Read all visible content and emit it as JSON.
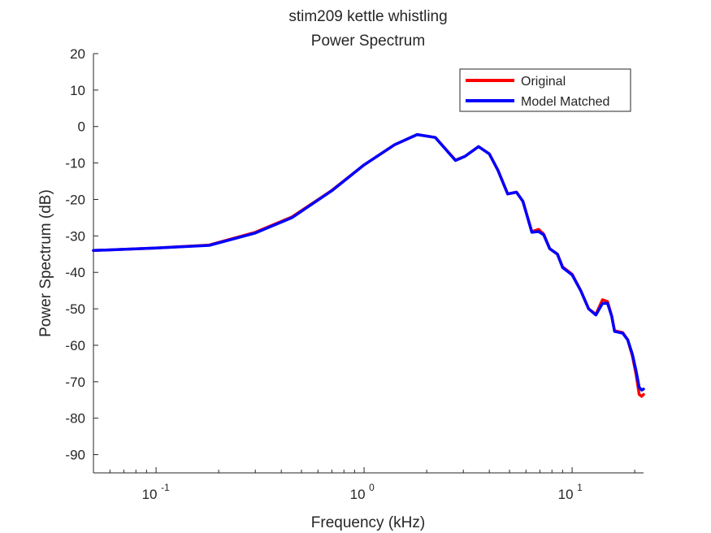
{
  "chart_data": {
    "type": "line",
    "title": "stim209 kettle whistling",
    "subtitle": "Power Spectrum",
    "xlabel": "Frequency (kHz)",
    "ylabel": "Power Spectrum (dB)",
    "x_scale": "log",
    "xlim": [
      0.05,
      22.05
    ],
    "ylim": [
      -95,
      20
    ],
    "x_ticks": [
      {
        "value": 0.1,
        "base": "10",
        "exp": "-1"
      },
      {
        "value": 1,
        "base": "10",
        "exp": "0"
      },
      {
        "value": 10,
        "base": "10",
        "exp": "1"
      }
    ],
    "y_ticks": [
      20,
      10,
      0,
      -10,
      -20,
      -30,
      -40,
      -50,
      -60,
      -70,
      -80,
      -90
    ],
    "grid": false,
    "legend_position": "top-right",
    "series": [
      {
        "name": "Original",
        "color": "#ff0000",
        "x": [
          0.05,
          0.1,
          0.18,
          0.3,
          0.45,
          0.7,
          1.0,
          1.4,
          1.8,
          2.2,
          2.75,
          3.05,
          3.55,
          4.0,
          4.4,
          4.9,
          5.4,
          5.8,
          6.4,
          6.9,
          7.3,
          7.8,
          8.5,
          9.0,
          10.0,
          11.0,
          12.0,
          13.0,
          14.0,
          14.8,
          15.5,
          16.0,
          16.6,
          17.5,
          18.5,
          19.5,
          20.3,
          21.0,
          21.6,
          22.05
        ],
        "y": [
          -34,
          -33.3,
          -32.5,
          -29,
          -24.8,
          -17.5,
          -10.5,
          -5,
          -2.2,
          -3,
          -9.2,
          -8.2,
          -5.5,
          -7.5,
          -12,
          -18.5,
          -18,
          -20.5,
          -28.8,
          -28.2,
          -29.5,
          -33.5,
          -35,
          -38.5,
          -40.5,
          -45,
          -50,
          -51.5,
          -47.5,
          -48,
          -52,
          -56,
          -56.2,
          -56.5,
          -58.5,
          -63,
          -68,
          -73.5,
          -74,
          -73.5
        ]
      },
      {
        "name": "Model Matched",
        "color": "#0000ff",
        "x": [
          0.05,
          0.1,
          0.18,
          0.3,
          0.45,
          0.7,
          1.0,
          1.4,
          1.8,
          2.2,
          2.75,
          3.05,
          3.55,
          4.0,
          4.4,
          4.9,
          5.4,
          5.8,
          6.4,
          6.9,
          7.3,
          7.8,
          8.5,
          9.0,
          10.0,
          11.0,
          12.0,
          13.0,
          14.0,
          14.8,
          15.5,
          16.0,
          16.6,
          17.5,
          18.5,
          19.5,
          20.3,
          21.0,
          21.6,
          22.05
        ],
        "y": [
          -34,
          -33.3,
          -32.6,
          -29.2,
          -25,
          -17.6,
          -10.5,
          -5,
          -2.2,
          -3,
          -9.3,
          -8.2,
          -5.5,
          -7.5,
          -12,
          -18.5,
          -18,
          -20.5,
          -29,
          -28.8,
          -29.7,
          -33.5,
          -35,
          -38.7,
          -40.7,
          -45,
          -50,
          -51.7,
          -48.5,
          -48.5,
          -52,
          -56.2,
          -56.4,
          -56.7,
          -58.5,
          -62.5,
          -67,
          -71.5,
          -72.3,
          -72
        ]
      }
    ]
  }
}
